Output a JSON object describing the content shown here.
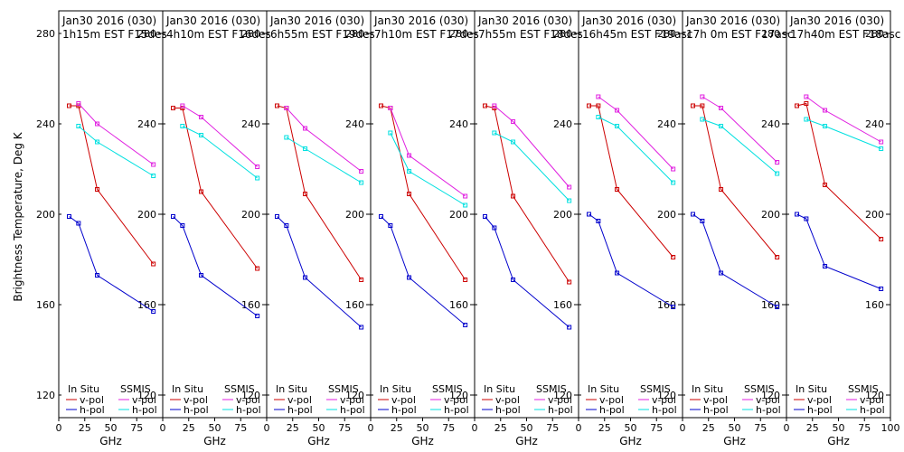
{
  "chart_data": {
    "type": "line",
    "ylabel": "Brightness Temperature, Deg K",
    "xlabel": "GHz",
    "xlim": [
      0,
      100
    ],
    "ylim": [
      110,
      290
    ],
    "y_ticks": [
      120,
      160,
      200,
      240,
      280
    ],
    "x_ticks": [
      0,
      25,
      50,
      75
    ],
    "x_ticks_last": [
      0,
      25,
      50,
      75,
      100
    ],
    "legend": {
      "in_situ_header": "In Situ",
      "ssmis_header": "SSMIS",
      "entries": [
        {
          "label": "v-pol",
          "color": "#cc0000",
          "group": "in_situ"
        },
        {
          "label": "h-pol",
          "color": "#0000cc",
          "group": "in_situ"
        },
        {
          "label": "v-pol",
          "color": "#e020e0",
          "group": "ssmis"
        },
        {
          "label": "h-pol",
          "color": "#00e0e0",
          "group": "ssmis"
        }
      ]
    },
    "series_colors": {
      "insitu_v": "#cc0000",
      "insitu_h": "#0000cc",
      "ssmis_v": "#e020e0",
      "ssmis_h": "#00e0e0"
    },
    "panels": [
      {
        "title1": "Jan30 2016 (030)",
        "title2": "1h15m EST F15des",
        "insitu_v": {
          "x": [
            10,
            19,
            37,
            91
          ],
          "y": [
            248,
            248,
            211,
            178
          ]
        },
        "insitu_h": {
          "x": [
            10,
            19,
            37,
            91
          ],
          "y": [
            199,
            196,
            173,
            157
          ]
        },
        "ssmis_v": {
          "x": [
            19,
            37,
            91
          ],
          "y": [
            249,
            240,
            222
          ]
        },
        "ssmis_h": {
          "x": [
            19,
            37,
            91
          ],
          "y": [
            239,
            232,
            217
          ]
        }
      },
      {
        "title1": "Jan30 2016 (030)",
        "title2": "4h10m EST F16des",
        "insitu_v": {
          "x": [
            10,
            19,
            37,
            91
          ],
          "y": [
            247,
            247,
            210,
            176
          ]
        },
        "insitu_h": {
          "x": [
            10,
            19,
            37,
            91
          ],
          "y": [
            199,
            195,
            173,
            155
          ]
        },
        "ssmis_v": {
          "x": [
            19,
            37,
            91
          ],
          "y": [
            248,
            243,
            221
          ]
        },
        "ssmis_h": {
          "x": [
            19,
            37,
            91
          ],
          "y": [
            239,
            235,
            216
          ]
        }
      },
      {
        "title1": "Jan30 2016 (030)",
        "title2": "6h55m EST F19des",
        "insitu_v": {
          "x": [
            10,
            19,
            37,
            91
          ],
          "y": [
            248,
            247,
            209,
            171
          ]
        },
        "insitu_h": {
          "x": [
            10,
            19,
            37,
            91
          ],
          "y": [
            199,
            195,
            172,
            150
          ]
        },
        "ssmis_v": {
          "x": [
            19,
            37,
            91
          ],
          "y": [
            247,
            238,
            219
          ]
        },
        "ssmis_h": {
          "x": [
            19,
            37,
            91
          ],
          "y": [
            234,
            229,
            214
          ]
        }
      },
      {
        "title1": "Jan30 2016 (030)",
        "title2": "7h10m EST F17des",
        "insitu_v": {
          "x": [
            10,
            19,
            37,
            91
          ],
          "y": [
            248,
            247,
            209,
            171
          ]
        },
        "insitu_h": {
          "x": [
            10,
            19,
            37,
            91
          ],
          "y": [
            199,
            195,
            172,
            151
          ]
        },
        "ssmis_v": {
          "x": [
            19,
            37,
            91
          ],
          "y": [
            247,
            226,
            208
          ]
        },
        "ssmis_h": {
          "x": [
            19,
            37,
            91
          ],
          "y": [
            236,
            219,
            204
          ]
        }
      },
      {
        "title1": "Jan30 2016 (030)",
        "title2": "7h55m EST F18des",
        "insitu_v": {
          "x": [
            10,
            19,
            37,
            91
          ],
          "y": [
            248,
            247,
            208,
            170
          ]
        },
        "insitu_h": {
          "x": [
            10,
            19,
            37,
            91
          ],
          "y": [
            199,
            194,
            171,
            150
          ]
        },
        "ssmis_v": {
          "x": [
            19,
            37,
            91
          ],
          "y": [
            248,
            241,
            212
          ]
        },
        "ssmis_h": {
          "x": [
            19,
            37,
            91
          ],
          "y": [
            236,
            232,
            206
          ]
        }
      },
      {
        "title1": "Jan30 2016 (030)",
        "title2": "16h45m EST F19asc",
        "insitu_v": {
          "x": [
            10,
            19,
            37,
            91
          ],
          "y": [
            248,
            248,
            211,
            181
          ]
        },
        "insitu_h": {
          "x": [
            10,
            19,
            37,
            91
          ],
          "y": [
            200,
            197,
            174,
            159
          ]
        },
        "ssmis_v": {
          "x": [
            19,
            37,
            91
          ],
          "y": [
            252,
            246,
            220
          ]
        },
        "ssmis_h": {
          "x": [
            19,
            37,
            91
          ],
          "y": [
            243,
            239,
            214
          ]
        }
      },
      {
        "title1": "Jan30 2016 (030)",
        "title2": "17h 0m EST F17asc",
        "insitu_v": {
          "x": [
            10,
            19,
            37,
            91
          ],
          "y": [
            248,
            248,
            211,
            181
          ]
        },
        "insitu_h": {
          "x": [
            10,
            19,
            37,
            91
          ],
          "y": [
            200,
            197,
            174,
            159
          ]
        },
        "ssmis_v": {
          "x": [
            19,
            37,
            91
          ],
          "y": [
            252,
            247,
            223
          ]
        },
        "ssmis_h": {
          "x": [
            19,
            37,
            91
          ],
          "y": [
            242,
            239,
            218
          ]
        }
      },
      {
        "title1": "Jan30 2016 (030)",
        "title2": "17h40m EST F18asc",
        "insitu_v": {
          "x": [
            10,
            19,
            37,
            91
          ],
          "y": [
            248,
            249,
            213,
            189
          ]
        },
        "insitu_h": {
          "x": [
            10,
            19,
            37,
            91
          ],
          "y": [
            200,
            198,
            177,
            167
          ]
        },
        "ssmis_v": {
          "x": [
            19,
            37,
            91
          ],
          "y": [
            252,
            246,
            232
          ]
        },
        "ssmis_h": {
          "x": [
            19,
            37,
            91
          ],
          "y": [
            242,
            239,
            229
          ]
        }
      }
    ]
  }
}
